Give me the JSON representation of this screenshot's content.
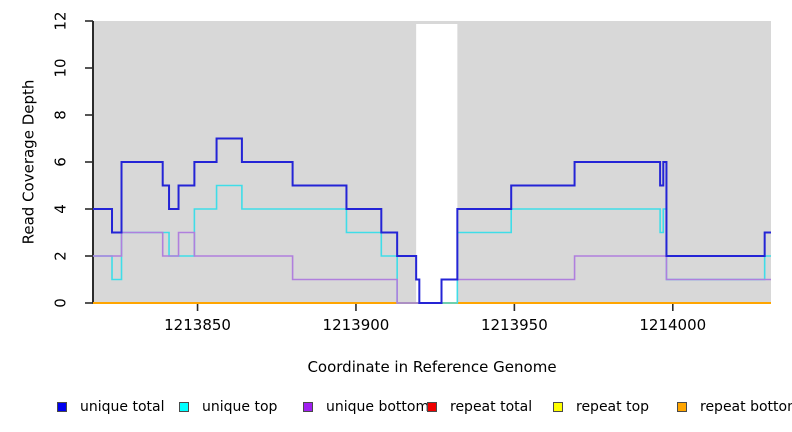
{
  "figure": {
    "plot_bg_color": "#d8d8d8",
    "no_data_color": "#ffffff",
    "axis_color": "#2b2b2b",
    "text_color": "#000000"
  },
  "chart_data": {
    "type": "line",
    "subtype": "step",
    "title": "",
    "xlabel": "Coordinate in Reference Genome",
    "ylabel": "Read Coverage Depth",
    "xlim": [
      1213817,
      1214031
    ],
    "ylim": [
      0,
      12
    ],
    "x_ticks": [
      1213850,
      1213900,
      1213950,
      1214000
    ],
    "y_ticks": [
      0,
      2,
      4,
      6,
      8,
      10,
      12
    ],
    "grid": "off",
    "legend_position": "bottom",
    "no_data_region": [
      1213919,
      1213932
    ],
    "series": [
      {
        "name": "repeat total",
        "legend_color": "#ee0000",
        "line_color": "#ee0000",
        "values": [
          [
            1213817,
            0
          ]
        ]
      },
      {
        "name": "repeat top",
        "legend_color": "#ffff00",
        "line_color": "#ffff00",
        "values": [
          [
            1213817,
            0
          ]
        ]
      },
      {
        "name": "repeat bottom",
        "legend_color": "#ffa500",
        "line_color": "#ffa500",
        "values": [
          [
            1213817,
            0
          ]
        ]
      },
      {
        "name": "unique top",
        "legend_color": "#00ffff",
        "line_color": "#3fdde8",
        "values": [
          [
            1213817,
            2
          ],
          [
            1213823,
            1
          ],
          [
            1213826,
            3
          ],
          [
            1213841,
            2
          ],
          [
            1213849,
            4
          ],
          [
            1213856,
            5
          ],
          [
            1213864,
            4
          ],
          [
            1213897,
            3
          ],
          [
            1213908,
            2
          ],
          [
            1213913,
            0
          ],
          [
            1213932,
            3
          ],
          [
            1213949,
            4
          ],
          [
            1213996,
            3
          ],
          [
            1213997,
            4
          ],
          [
            1213998,
            1
          ],
          [
            1214029,
            2
          ]
        ]
      },
      {
        "name": "unique bottom",
        "legend_color": "#a020f0",
        "line_color": "#b07fdd",
        "values": [
          [
            1213817,
            2
          ],
          [
            1213826,
            3
          ],
          [
            1213839,
            2
          ],
          [
            1213844,
            3
          ],
          [
            1213849,
            2
          ],
          [
            1213880,
            1
          ],
          [
            1213913,
            0
          ],
          [
            1213927,
            1
          ],
          [
            1213969,
            2
          ],
          [
            1213998,
            1
          ]
        ]
      },
      {
        "name": "unique total",
        "legend_color": "#0000ee",
        "line_color": "#2424d6",
        "values": [
          [
            1213817,
            4
          ],
          [
            1213823,
            3
          ],
          [
            1213826,
            6
          ],
          [
            1213839,
            5
          ],
          [
            1213841,
            4
          ],
          [
            1213844,
            5
          ],
          [
            1213849,
            6
          ],
          [
            1213856,
            7
          ],
          [
            1213864,
            6
          ],
          [
            1213880,
            5
          ],
          [
            1213897,
            4
          ],
          [
            1213908,
            3
          ],
          [
            1213913,
            2
          ],
          [
            1213919,
            1
          ],
          [
            1213920,
            0
          ],
          [
            1213927,
            1
          ],
          [
            1213932,
            4
          ],
          [
            1213949,
            5
          ],
          [
            1213969,
            6
          ],
          [
            1213996,
            5
          ],
          [
            1213997,
            6
          ],
          [
            1213998,
            2
          ],
          [
            1214029,
            3
          ]
        ]
      }
    ],
    "legend_order": [
      "unique total",
      "unique top",
      "unique bottom",
      "repeat total",
      "repeat top",
      "repeat bottom"
    ]
  }
}
